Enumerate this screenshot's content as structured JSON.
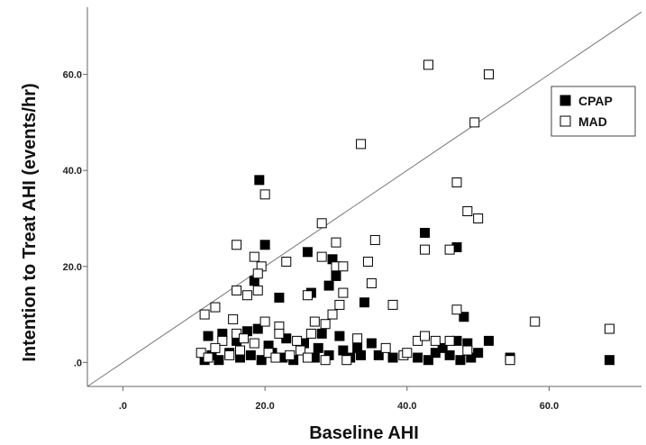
{
  "chart_data": {
    "type": "scatter",
    "xlabel": "Baseline AHI",
    "ylabel": "Intention to Treat  AHI (events/hr)",
    "xlim": [
      -5,
      73
    ],
    "ylim": [
      -5,
      74
    ],
    "x_ticks": [
      0,
      20,
      40,
      60
    ],
    "x_tick_labels": [
      ".0",
      "20.0",
      "40.0",
      "60.0"
    ],
    "y_ticks": [
      0,
      20,
      40,
      60
    ],
    "y_tick_labels": [
      ".0",
      "20.0",
      "40.0",
      "60.0"
    ],
    "grid": false,
    "legend_position": "top-right",
    "reference_line": "identity",
    "series": [
      {
        "name": "CPAP",
        "marker": "filled-square",
        "color": "#000000",
        "points": [
          [
            19.2,
            38.0
          ],
          [
            20.0,
            24.5
          ],
          [
            26.0,
            23.0
          ],
          [
            42.5,
            27.0
          ],
          [
            47.0,
            24.0
          ],
          [
            29.5,
            21.5
          ],
          [
            30.0,
            18.0
          ],
          [
            18.5,
            17.0
          ],
          [
            29.0,
            16.0
          ],
          [
            22.0,
            13.5
          ],
          [
            26.5,
            14.5
          ],
          [
            34.0,
            12.5
          ],
          [
            48.0,
            9.5
          ],
          [
            12.0,
            5.5
          ],
          [
            14.0,
            6.0
          ],
          [
            16.0,
            4.5
          ],
          [
            17.5,
            6.5
          ],
          [
            19.0,
            7.0
          ],
          [
            20.5,
            3.5
          ],
          [
            23.0,
            5.0
          ],
          [
            25.5,
            4.0
          ],
          [
            28.0,
            6.0
          ],
          [
            30.5,
            5.5
          ],
          [
            33.0,
            3.0
          ],
          [
            35.0,
            4.0
          ],
          [
            36.0,
            1.5
          ],
          [
            38.0,
            1.0
          ],
          [
            41.5,
            1.0
          ],
          [
            43.0,
            0.5
          ],
          [
            44.0,
            2.0
          ],
          [
            46.0,
            1.5
          ],
          [
            47.0,
            4.5
          ],
          [
            48.5,
            4.0
          ],
          [
            49.0,
            1.0
          ],
          [
            50.0,
            2.0
          ],
          [
            51.5,
            4.5
          ],
          [
            54.5,
            1.0
          ],
          [
            68.5,
            0.5
          ],
          [
            11.5,
            0.5
          ],
          [
            12.5,
            1.5
          ],
          [
            13.5,
            0.5
          ],
          [
            15.0,
            2.0
          ],
          [
            16.5,
            1.0
          ],
          [
            18.0,
            1.5
          ],
          [
            19.5,
            0.5
          ],
          [
            21.0,
            2.0
          ],
          [
            22.5,
            1.0
          ],
          [
            24.0,
            0.5
          ],
          [
            27.0,
            1.0
          ],
          [
            27.5,
            3.0
          ],
          [
            29.0,
            1.5
          ],
          [
            31.0,
            2.5
          ],
          [
            32.0,
            1.0
          ],
          [
            33.5,
            1.5
          ],
          [
            45.0,
            3.0
          ],
          [
            47.5,
            0.5
          ]
        ]
      },
      {
        "name": "MAD",
        "marker": "open-square",
        "color": "#000000",
        "points": [
          [
            43.0,
            62.0
          ],
          [
            51.5,
            60.0
          ],
          [
            49.5,
            50.0
          ],
          [
            33.5,
            45.5
          ],
          [
            20.0,
            35.0
          ],
          [
            47.0,
            37.5
          ],
          [
            48.5,
            31.5
          ],
          [
            50.0,
            30.0
          ],
          [
            28.0,
            29.0
          ],
          [
            16.0,
            24.5
          ],
          [
            30.0,
            25.0
          ],
          [
            35.5,
            25.5
          ],
          [
            46.0,
            23.5
          ],
          [
            42.5,
            23.5
          ],
          [
            18.5,
            22.0
          ],
          [
            28.0,
            22.0
          ],
          [
            23.0,
            21.0
          ],
          [
            30.0,
            20.0
          ],
          [
            31.0,
            20.0
          ],
          [
            34.5,
            21.0
          ],
          [
            19.5,
            20.0
          ],
          [
            19.0,
            18.5
          ],
          [
            17.5,
            14.0
          ],
          [
            19.0,
            15.0
          ],
          [
            35.0,
            16.5
          ],
          [
            16.0,
            15.0
          ],
          [
            26.0,
            14.0
          ],
          [
            31.0,
            14.5
          ],
          [
            30.5,
            12.0
          ],
          [
            38.0,
            12.0
          ],
          [
            11.5,
            10.0
          ],
          [
            13.0,
            11.5
          ],
          [
            47.0,
            11.0
          ],
          [
            29.5,
            10.0
          ],
          [
            27.0,
            8.5
          ],
          [
            15.5,
            9.0
          ],
          [
            20.0,
            8.5
          ],
          [
            22.0,
            7.5
          ],
          [
            58.0,
            8.5
          ],
          [
            68.5,
            7.0
          ],
          [
            28.5,
            8.0
          ],
          [
            16.0,
            6.0
          ],
          [
            17.0,
            5.0
          ],
          [
            18.5,
            4.0
          ],
          [
            14.0,
            4.5
          ],
          [
            13.0,
            3.0
          ],
          [
            11.0,
            2.0
          ],
          [
            12.0,
            1.0
          ],
          [
            15.0,
            1.5
          ],
          [
            16.5,
            2.5
          ],
          [
            20.5,
            2.0
          ],
          [
            21.5,
            1.0
          ],
          [
            23.5,
            1.5
          ],
          [
            25.0,
            2.5
          ],
          [
            26.0,
            1.0
          ],
          [
            28.5,
            0.5
          ],
          [
            31.5,
            0.5
          ],
          [
            33.0,
            5.0
          ],
          [
            41.5,
            4.5
          ],
          [
            42.5,
            5.5
          ],
          [
            44.0,
            4.5
          ],
          [
            46.0,
            4.5
          ],
          [
            48.5,
            2.5
          ],
          [
            54.5,
            0.5
          ],
          [
            37.0,
            3.0
          ],
          [
            39.5,
            1.5
          ],
          [
            40.0,
            2.0
          ],
          [
            22.0,
            6.0
          ],
          [
            24.5,
            4.5
          ],
          [
            26.5,
            6.0
          ]
        ]
      }
    ]
  }
}
